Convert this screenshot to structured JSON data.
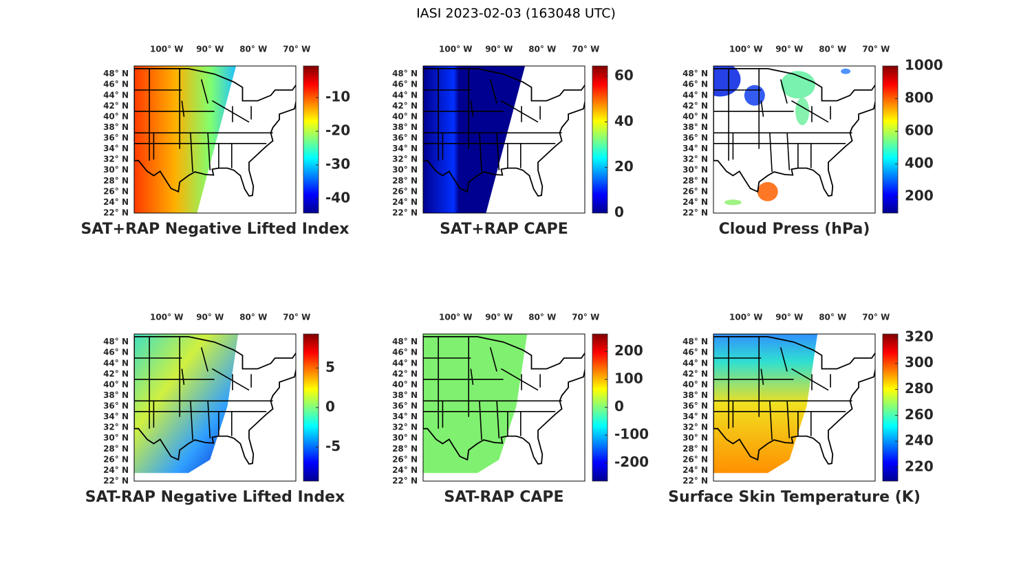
{
  "title": "IASI 2023-02-03 (163048 UTC)",
  "map": {
    "lonlim": [
      -107.5,
      -70.2
    ],
    "latlim": [
      22,
      49.5
    ],
    "lon_ticks": [
      {
        "value": -100,
        "label": "100° W"
      },
      {
        "value": -90,
        "label": "90° W"
      },
      {
        "value": -80,
        "label": "80° W"
      },
      {
        "value": -70,
        "label": "70° W"
      }
    ],
    "lat_ticks": [
      {
        "value": 22,
        "label": "22° N"
      },
      {
        "value": 24,
        "label": "24° N"
      },
      {
        "value": 26,
        "label": "26° N"
      },
      {
        "value": 28,
        "label": "28° N"
      },
      {
        "value": 30,
        "label": "30° N"
      },
      {
        "value": 32,
        "label": "32° N"
      },
      {
        "value": 34,
        "label": "34° N"
      },
      {
        "value": 36,
        "label": "36° N"
      },
      {
        "value": 38,
        "label": "38° N"
      },
      {
        "value": 40,
        "label": "40° N"
      },
      {
        "value": 42,
        "label": "42° N"
      },
      {
        "value": 44,
        "label": "44° N"
      },
      {
        "value": 46,
        "label": "46° N"
      },
      {
        "value": 48,
        "label": "48° N"
      }
    ]
  },
  "panels": [
    {
      "title": "SAT+RAP Negative Lifted Index",
      "colorbar": {
        "colormap": "jet",
        "clim": [
          -44.3,
          -0.6
        ],
        "ticks": [
          -40,
          -30,
          -20,
          -10
        ]
      }
    },
    {
      "title": "SAT+RAP CAPE",
      "colorbar": {
        "colormap": "jet",
        "clim": [
          0,
          64.5
        ],
        "ticks": [
          0,
          20,
          40,
          60
        ]
      }
    },
    {
      "title": "Cloud Press (hPa)",
      "colorbar": {
        "colormap": "jet",
        "clim": [
          100,
          1000
        ],
        "ticks": [
          200,
          400,
          600,
          800,
          1000
        ]
      }
    },
    {
      "title": "SAT-RAP Negative Lifted Index",
      "colorbar": {
        "colormap": "jet",
        "clim": [
          -9.3,
          9.3
        ],
        "ticks": [
          -5,
          0,
          5
        ]
      }
    },
    {
      "title": "SAT-RAP CAPE",
      "colorbar": {
        "colormap": "jet",
        "clim": [
          -265,
          263
        ],
        "ticks": [
          -200,
          -100,
          0,
          100,
          200
        ]
      }
    },
    {
      "title": "Surface Skin Temperature (K)",
      "colorbar": {
        "colormap": "jet",
        "clim": [
          209.4,
          322.6
        ],
        "ticks": [
          220,
          240,
          260,
          280,
          300,
          320
        ]
      }
    }
  ]
}
